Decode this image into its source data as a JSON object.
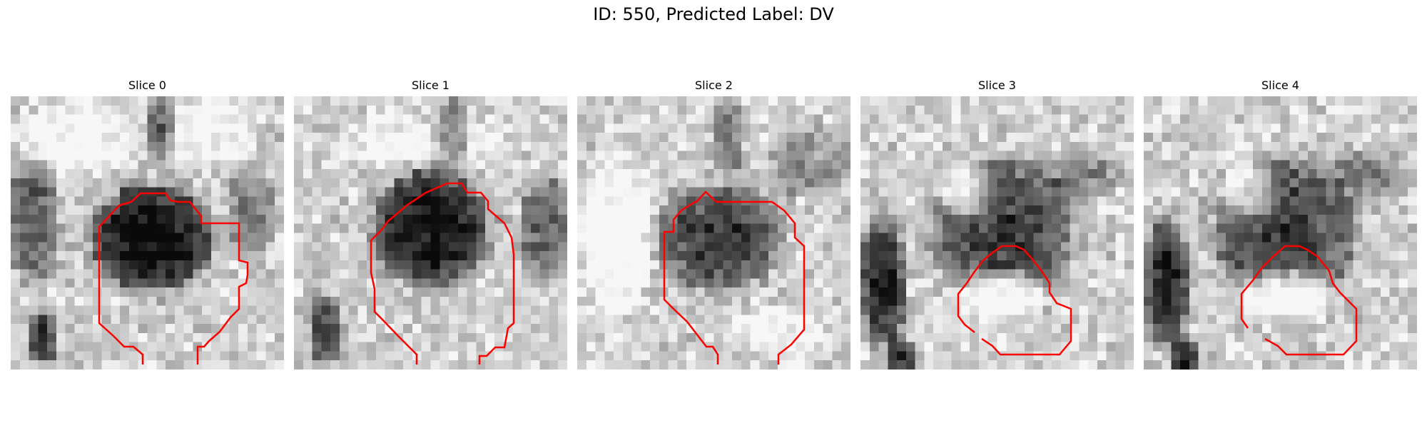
{
  "figure": {
    "title": "ID: 550, Predicted Label: DV",
    "contour_color": "#ff0000",
    "panels": [
      {
        "title": "Slice 0",
        "mask_icon": "red-contour-outline"
      },
      {
        "title": "Slice 1",
        "mask_icon": "red-contour-outline"
      },
      {
        "title": "Slice 2",
        "mask_icon": "red-contour-outline"
      },
      {
        "title": "Slice 3",
        "mask_icon": "red-contour-outline"
      },
      {
        "title": "Slice 4",
        "mask_icon": "red-contour-outline"
      }
    ]
  }
}
